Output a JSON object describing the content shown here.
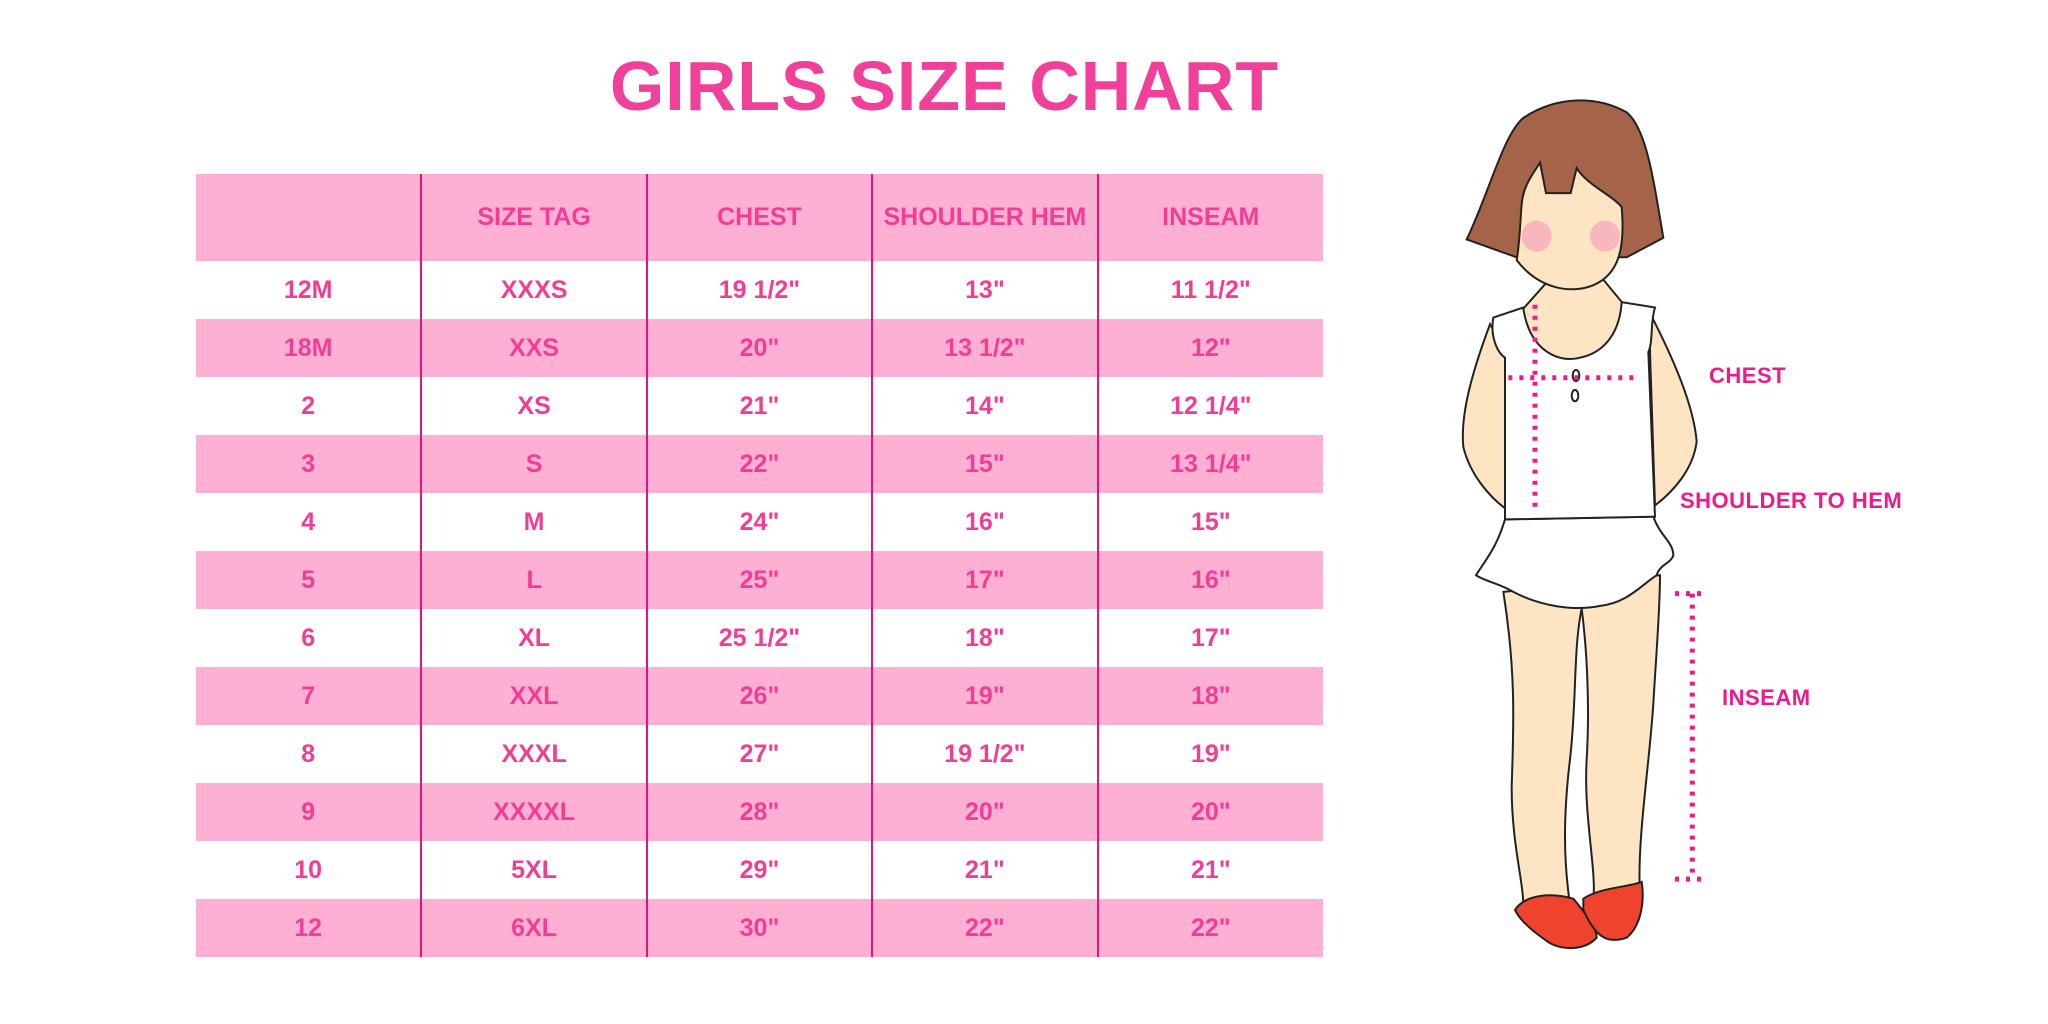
{
  "title": "GIRLS SIZE CHART",
  "table": {
    "headers": [
      "",
      "SIZE TAG",
      "CHEST",
      "SHOULDER HEM",
      "INSEAM"
    ],
    "rows": [
      [
        "12M",
        "XXXS",
        "19 1/2\"",
        "13\"",
        "11 1/2\""
      ],
      [
        "18M",
        "XXS",
        "20\"",
        "13 1/2\"",
        "12\""
      ],
      [
        "2",
        "XS",
        "21\"",
        "14\"",
        "12 1/4\""
      ],
      [
        "3",
        "S",
        "22\"",
        "15\"",
        "13 1/4\""
      ],
      [
        "4",
        "M",
        "24\"",
        "16\"",
        "15\""
      ],
      [
        "5",
        "L",
        "25\"",
        "17\"",
        "16\""
      ],
      [
        "6",
        "XL",
        "25 1/2\"",
        "18\"",
        "17\""
      ],
      [
        "7",
        "XXL",
        "26\"",
        "19\"",
        "18\""
      ],
      [
        "8",
        "XXXL",
        "27\"",
        "19 1/2\"",
        "19\""
      ],
      [
        "9",
        "XXXXL",
        "28\"",
        "20\"",
        "20\""
      ],
      [
        "10",
        "5XL",
        "29\"",
        "21\"",
        "21\""
      ],
      [
        "12",
        "6XL",
        "30\"",
        "22\"",
        "22\""
      ]
    ]
  },
  "figure": {
    "labels": {
      "chest": "CHEST",
      "shoulder_to_hem": "SHOULDER TO HEM",
      "inseam": "INSEAM"
    }
  },
  "colors": {
    "accent": "#f0409a",
    "row_pink": "#fdb0d4",
    "divider": "#e0147f",
    "measure": "#ee1a8c"
  }
}
